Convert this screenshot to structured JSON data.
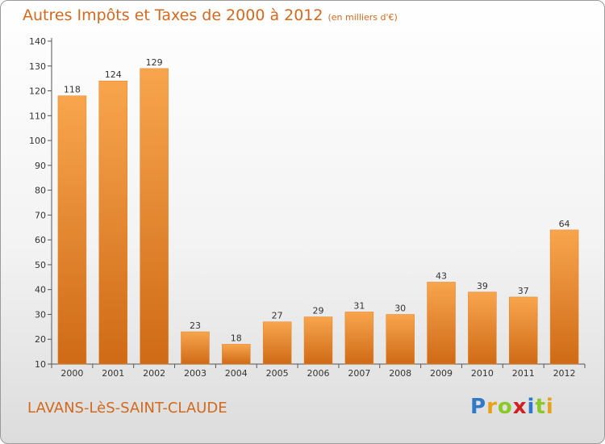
{
  "header": {
    "title": "Autres Impôts et Taxes de 2000 à 2012",
    "unit": "(en milliers d'€)"
  },
  "footer": {
    "commune": "LAVANS-LèS-SAINT-CLAUDE",
    "logo_parts": [
      "P",
      "r",
      "o",
      "x",
      "i",
      "t",
      "i"
    ],
    "logo_colors": [
      "#2f79c8",
      "#e8a21a",
      "#8ac926",
      "#d02020",
      "#2f79c8",
      "#8ac926",
      "#e8a21a"
    ]
  },
  "colors": {
    "bar_light": "#f8a54e",
    "bar_dark": "#cf6a16",
    "text_accent": "#d2691e"
  },
  "chart_data": {
    "type": "bar",
    "title": "Autres Impôts et Taxes de 2000 à 2012",
    "subtitle": "(en milliers d'€)",
    "categories": [
      "2000",
      "2001",
      "2002",
      "2003",
      "2004",
      "2005",
      "2006",
      "2007",
      "2008",
      "2009",
      "2010",
      "2011",
      "2012"
    ],
    "values": [
      118,
      124,
      129,
      23,
      18,
      27,
      29,
      31,
      30,
      43,
      39,
      37,
      64
    ],
    "ylim": [
      10,
      140
    ],
    "yticks": [
      10,
      20,
      30,
      40,
      50,
      60,
      70,
      80,
      90,
      100,
      110,
      120,
      130,
      140
    ],
    "grid": false,
    "legend": "none"
  }
}
